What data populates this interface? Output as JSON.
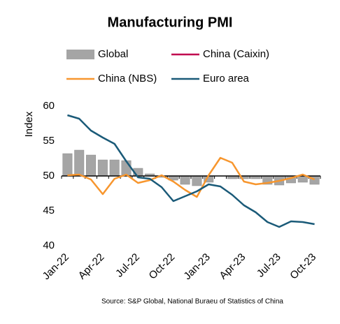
{
  "chart_data": {
    "type": "bar_line",
    "title": "Manufacturing PMI",
    "y_label": "Index",
    "source": "Source: S&P Global, National Buraeu of Statistics of China",
    "categories": [
      "Jan-22",
      null,
      null,
      "Apr-22",
      null,
      null,
      "Jul-22",
      null,
      null,
      "Oct-22",
      null,
      null,
      "Jan-23",
      null,
      null,
      "Apr-23",
      null,
      null,
      "Jul-23",
      null,
      null,
      "Oct-23"
    ],
    "ylim": [
      40,
      60
    ],
    "yticks": [
      40,
      45,
      50,
      55,
      60
    ],
    "bar_baseline": 50,
    "grid": false,
    "series": [
      {
        "name": "Global",
        "kind": "bar",
        "color": "#a5a5a5",
        "values": [
          53.2,
          53.7,
          53.0,
          52.3,
          52.3,
          52.2,
          51.1,
          50.3,
          49.8,
          49.4,
          48.8,
          48.6,
          49.1,
          50.0,
          49.6,
          49.6,
          49.6,
          48.8,
          48.7,
          49.0,
          49.1,
          48.8
        ]
      },
      {
        "name": "China (Caixin)",
        "kind": "line",
        "color": "#c0004f",
        "values": [
          null,
          null,
          null,
          null,
          null,
          null,
          null,
          null,
          null,
          null,
          null,
          null,
          null,
          null,
          null,
          null,
          null,
          null,
          null,
          null,
          null,
          null
        ]
      },
      {
        "name": "China (NBS)",
        "kind": "line",
        "color": "#f7962e",
        "values": [
          50.1,
          50.2,
          49.5,
          47.4,
          49.6,
          50.2,
          49.0,
          49.4,
          50.1,
          49.2,
          48.0,
          47.0,
          50.1,
          52.6,
          51.9,
          49.2,
          48.8,
          49.0,
          49.3,
          49.7,
          50.2,
          49.5
        ]
      },
      {
        "name": "Euro area",
        "kind": "line",
        "color": "#1a5a78",
        "values": [
          58.7,
          58.2,
          56.5,
          55.5,
          54.6,
          52.1,
          49.8,
          49.6,
          48.4,
          46.4,
          47.1,
          47.8,
          48.8,
          48.5,
          47.3,
          45.8,
          44.8,
          43.4,
          42.7,
          43.5,
          43.4,
          43.1
        ]
      }
    ]
  }
}
